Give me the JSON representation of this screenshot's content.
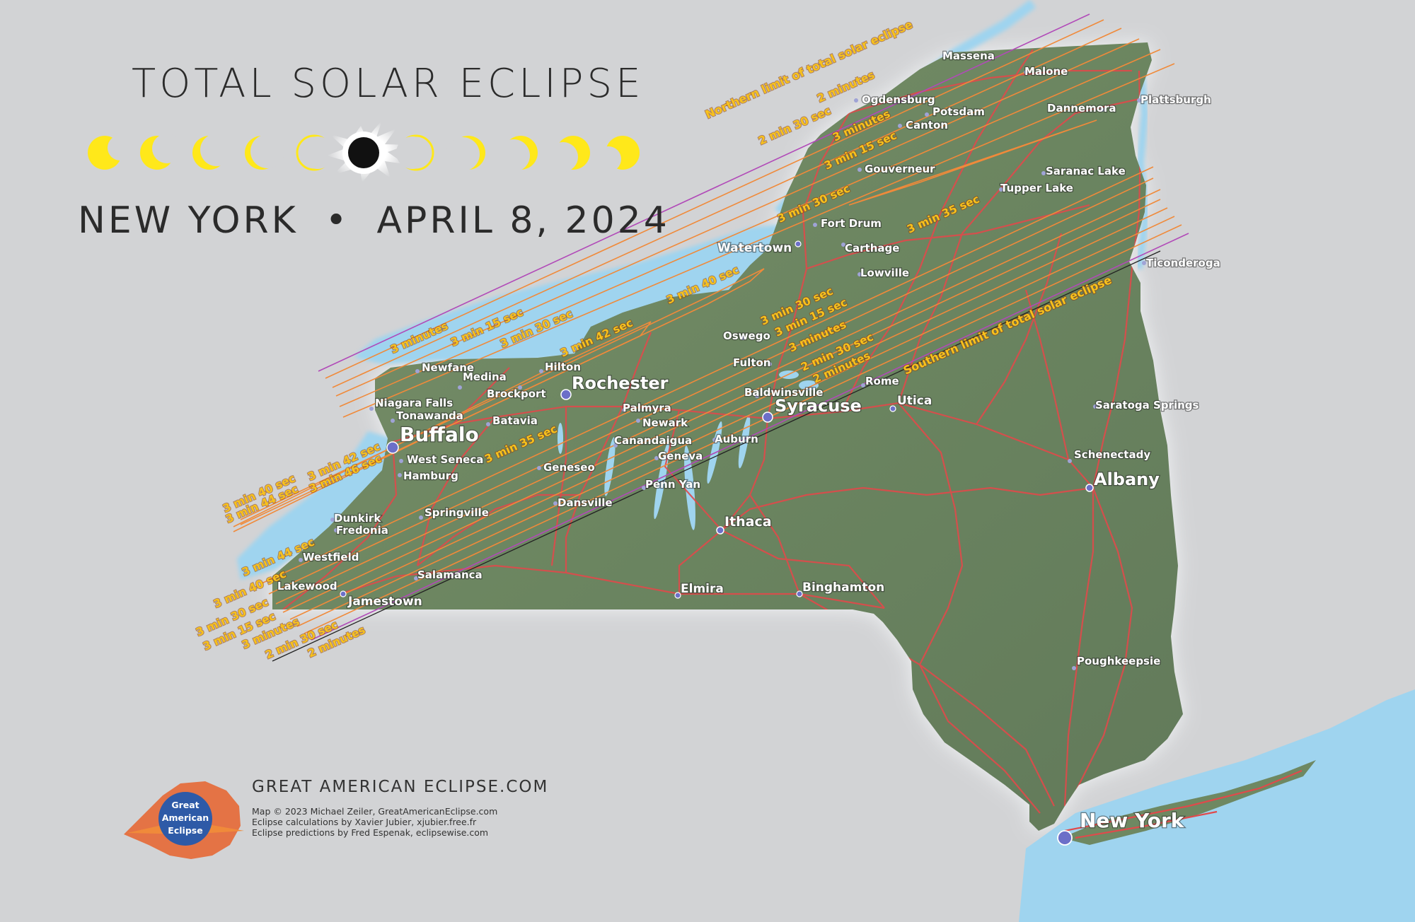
{
  "title": {
    "main": "TOTAL SOLAR ECLIPSE",
    "state": "NEW YORK",
    "separator": "•",
    "date": "APRIL 8, 2024"
  },
  "colors": {
    "background": "#d2d3d5",
    "land": "#6e8862",
    "water": "#9ed3ee",
    "roads": "#e0494a",
    "duration_labels": "#f8c21c",
    "sun": "#ffe81a",
    "city_marker": "#6c6fc8"
  },
  "eclipse_phases": [
    "partial",
    "partial",
    "partial",
    "partial",
    "partial",
    "totality",
    "partial",
    "partial",
    "partial",
    "partial",
    "partial"
  ],
  "map": {
    "limit_labels": {
      "north": "Northern limit of total solar eclipse",
      "south": "Southern limit of total solar eclipse"
    },
    "cities_major": [
      {
        "name": "Buffalo"
      },
      {
        "name": "Rochester"
      },
      {
        "name": "Syracuse"
      },
      {
        "name": "Albany"
      },
      {
        "name": "New York"
      },
      {
        "name": "Ithaca"
      },
      {
        "name": "Watertown"
      },
      {
        "name": "Jamestown"
      },
      {
        "name": "Elmira"
      },
      {
        "name": "Binghamton"
      },
      {
        "name": "Utica"
      }
    ],
    "cities_minor": [
      "Massena",
      "Malone",
      "Plattsburgh",
      "Ogdensburg",
      "Potsdam",
      "Canton",
      "Dannemora",
      "Gouverneur",
      "Saranac Lake",
      "Tupper Lake",
      "Fort Drum",
      "Carthage",
      "Lowville",
      "Ticonderoga",
      "Oswego",
      "Fulton",
      "Baldwinsville",
      "Rome",
      "Newfane",
      "Medina",
      "Hilton",
      "Niagara Falls",
      "Brockport",
      "Tonawanda",
      "Palmyra",
      "Batavia",
      "Newark",
      "Canandaigua",
      "Auburn",
      "West Seneca",
      "Geneva",
      "Geneseo",
      "Hamburg",
      "Penn Yan",
      "Dansville",
      "Dunkirk",
      "Fredonia",
      "Springville",
      "Westfield",
      "Salamanca",
      "Lakewood",
      "Saratoga Springs",
      "Schenectady",
      "Poughkeepsie"
    ],
    "duration_labels": {
      "lake_erie": [
        "3 min 40 sec",
        "3 min 44 sec",
        "3 min 42 sec",
        "3 min 46 sec"
      ],
      "southwest": [
        "3 min 44 sec",
        "3 min 40 sec",
        "3 min 30 sec",
        "3 min 15 sec",
        "3 minutes",
        "2 min 30 sec",
        "2 minutes"
      ],
      "lake_ontario": [
        "3 minutes",
        "3 min 15 sec",
        "3 min 30 sec",
        "3 min 42 sec",
        "3 min 40 sec",
        "3 min 35 sec"
      ],
      "central": [
        "3 min 30 sec",
        "3 min 15 sec",
        "3 minutes",
        "2 min 30 sec",
        "2 minutes"
      ],
      "north": [
        "2 minutes",
        "2 min 30 sec",
        "3 minutes",
        "3 min 15 sec",
        "3 min 30 sec",
        "3 min 35 sec"
      ]
    }
  },
  "credits": {
    "site": "GREAT AMERICAN ECLIPSE.COM",
    "logo": [
      "Great",
      "American",
      "Eclipse"
    ],
    "lines": [
      "Map © 2023 Michael Zeiler, GreatAmericanEclipse.com",
      "Eclipse calculations by Xavier Jubier, xjubier.free.fr",
      "Eclipse predictions by Fred Espenak, eclipsewise.com"
    ]
  }
}
